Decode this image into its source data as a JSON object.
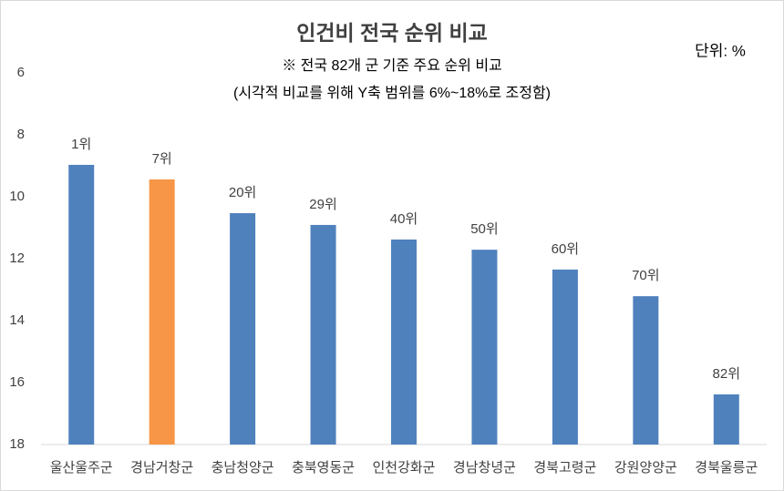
{
  "chart_data": {
    "type": "bar",
    "title": "인건비 전국 순위 비교",
    "subtitle": "※ 전국 82개 군 기준 주요 순위 비교",
    "note": "(시각적 비교를 위해 Y축 범위를 6%~18%로 조정함)",
    "unit": "단위: %",
    "categories": [
      "울산울주군",
      "경남거창군",
      "충남청양군",
      "충북영동군",
      "인천강화군",
      "경남창녕군",
      "경북고령군",
      "강원양양군",
      "경북울릉군"
    ],
    "values": [
      8.97,
      9.44,
      10.53,
      10.91,
      11.38,
      11.71,
      12.35,
      13.21,
      16.38
    ],
    "rank_labels": [
      "1위",
      "7위",
      "20위",
      "29위",
      "40위",
      "50위",
      "60위",
      "70위",
      "82위"
    ],
    "colors": [
      "#4f81bd",
      "#f79646",
      "#4f81bd",
      "#4f81bd",
      "#4f81bd",
      "#4f81bd",
      "#4f81bd",
      "#4f81bd",
      "#4f81bd"
    ],
    "ylim": [
      18,
      6
    ],
    "yticks": [
      6,
      8,
      10,
      12,
      14,
      16,
      18
    ],
    "grid": false
  }
}
